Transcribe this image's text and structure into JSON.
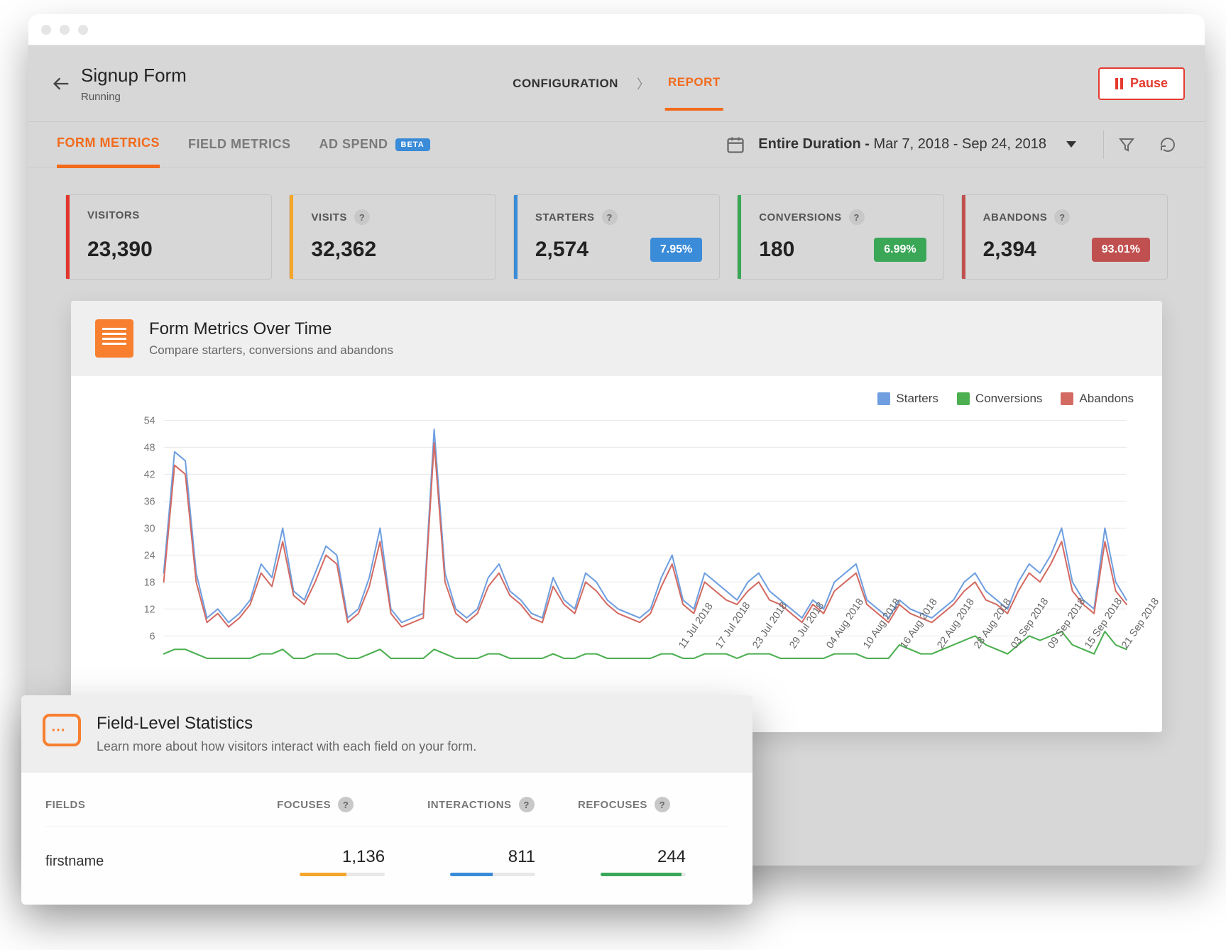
{
  "colors": {
    "accent_orange": "#f26a1b",
    "grid": "#e9e9e9"
  },
  "header": {
    "title": "Signup Form",
    "status": "Running",
    "tabs": {
      "configuration": "CONFIGURATION",
      "report": "REPORT"
    },
    "active_tab": "report",
    "pause_label": "Pause"
  },
  "toolbar": {
    "tabs": {
      "form_metrics": "FORM METRICS",
      "field_metrics": "FIELD METRICS",
      "ad_spend": "AD SPEND",
      "beta_badge": "BETA"
    },
    "active": "form_metrics",
    "date_label_prefix": "Entire Duration - ",
    "date_range": "Mar 7, 2018 - Sep 24, 2018"
  },
  "cards": [
    {
      "key": "visitors",
      "label": "VISITORS",
      "value": "23,390",
      "accent": "#e2362c",
      "help": false
    },
    {
      "key": "visits",
      "label": "VISITS",
      "value": "32,362",
      "accent": "#f4a62a",
      "help": true
    },
    {
      "key": "starters",
      "label": "STARTERS",
      "value": "2,574",
      "accent": "#3a8bd8",
      "help": true,
      "badge": {
        "text": "7.95%",
        "bg": "#3a8bd8"
      }
    },
    {
      "key": "conversions",
      "label": "CONVERSIONS",
      "value": "180",
      "accent": "#3aa757",
      "help": true,
      "badge": {
        "text": "6.99%",
        "bg": "#3aa757"
      }
    },
    {
      "key": "abandons",
      "label": "ABANDONS",
      "value": "2,394",
      "accent": "#c0504f",
      "help": true,
      "badge": {
        "text": "93.01%",
        "bg": "#c0504f"
      }
    }
  ],
  "chart": {
    "title": "Form Metrics Over Time",
    "subtitle": "Compare starters, conversions and abandons",
    "type": "line",
    "legend": [
      {
        "name": "Starters",
        "color": "#6f9fe0"
      },
      {
        "name": "Conversions",
        "color": "#4caf50"
      },
      {
        "name": "Abandons",
        "color": "#d36b63"
      }
    ],
    "y": {
      "min": 6,
      "max": 54,
      "ticks": [
        6,
        12,
        18,
        24,
        30,
        36,
        42,
        48,
        54
      ],
      "fontsize": 14,
      "color": "#777"
    },
    "x_labels": [
      "11 Jul 2018",
      "17 Jul 2018",
      "23 Jul 2018",
      "29 Jul 2018",
      "04 Aug 2018",
      "10 Aug 2018",
      "16 Aug 2018",
      "22 Aug 2018",
      "28 Aug 2018",
      "03 Sep 2018",
      "09 Sep 2018",
      "15 Sep 2018",
      "21 Sep 2018"
    ],
    "series": {
      "starters": [
        20,
        47,
        45,
        20,
        10,
        12,
        9,
        11,
        14,
        22,
        19,
        30,
        16,
        14,
        20,
        26,
        24,
        10,
        12,
        19,
        30,
        12,
        9,
        10,
        11,
        52,
        20,
        12,
        10,
        12,
        19,
        22,
        16,
        14,
        11,
        10,
        19,
        14,
        12,
        20,
        18,
        14,
        12,
        11,
        10,
        12,
        19,
        24,
        14,
        12,
        20,
        18,
        16,
        14,
        18,
        20,
        16,
        14,
        12,
        10,
        14,
        12,
        18,
        20,
        22,
        14,
        12,
        10,
        14,
        12,
        11,
        10,
        12,
        14,
        18,
        20,
        16,
        14,
        12,
        18,
        22,
        20,
        24,
        30,
        18,
        14,
        12,
        30,
        18,
        14
      ],
      "abandons": [
        18,
        44,
        42,
        18,
        9,
        11,
        8,
        10,
        13,
        20,
        17,
        27,
        15,
        13,
        18,
        24,
        22,
        9,
        11,
        17,
        27,
        11,
        8,
        9,
        10,
        49,
        18,
        11,
        9,
        11,
        17,
        20,
        15,
        13,
        10,
        9,
        17,
        13,
        11,
        18,
        16,
        13,
        11,
        10,
        9,
        11,
        17,
        22,
        13,
        11,
        18,
        16,
        14,
        13,
        16,
        18,
        14,
        13,
        11,
        9,
        13,
        11,
        16,
        18,
        20,
        13,
        11,
        9,
        13,
        11,
        10,
        9,
        11,
        13,
        16,
        18,
        14,
        13,
        11,
        16,
        20,
        18,
        22,
        27,
        16,
        13,
        11,
        27,
        16,
        13
      ],
      "conversions": [
        2,
        3,
        3,
        2,
        1,
        1,
        1,
        1,
        1,
        2,
        2,
        3,
        1,
        1,
        2,
        2,
        2,
        1,
        1,
        2,
        3,
        1,
        1,
        1,
        1,
        3,
        2,
        1,
        1,
        1,
        2,
        2,
        1,
        1,
        1,
        1,
        2,
        1,
        1,
        2,
        2,
        1,
        1,
        1,
        1,
        1,
        2,
        2,
        1,
        1,
        2,
        2,
        2,
        1,
        2,
        2,
        2,
        1,
        1,
        1,
        1,
        1,
        2,
        2,
        2,
        1,
        1,
        1,
        4,
        3,
        2,
        2,
        3,
        4,
        5,
        6,
        4,
        3,
        2,
        4,
        6,
        5,
        6,
        7,
        4,
        3,
        2,
        7,
        4,
        3
      ]
    },
    "line_width": 2,
    "fontsize_labels": 14,
    "background": "#ffffff"
  },
  "field_stats": {
    "title": "Field-Level Statistics",
    "subtitle": "Learn more about how visitors interact with each field on your form.",
    "columns": {
      "fields": "FIELDS",
      "focuses": "FOCUSES",
      "interactions": "INTERACTIONS",
      "refocuses": "REFOCUSES"
    },
    "row": {
      "name": "firstname",
      "focuses": {
        "value": "1,136",
        "bar_pct": 55,
        "color": "#f4a62a"
      },
      "interactions": {
        "value": "811",
        "bar_pct": 50,
        "color": "#3a8bd8"
      },
      "refocuses": {
        "value": "244",
        "bar_pct": 95,
        "color": "#3aa757"
      }
    }
  }
}
